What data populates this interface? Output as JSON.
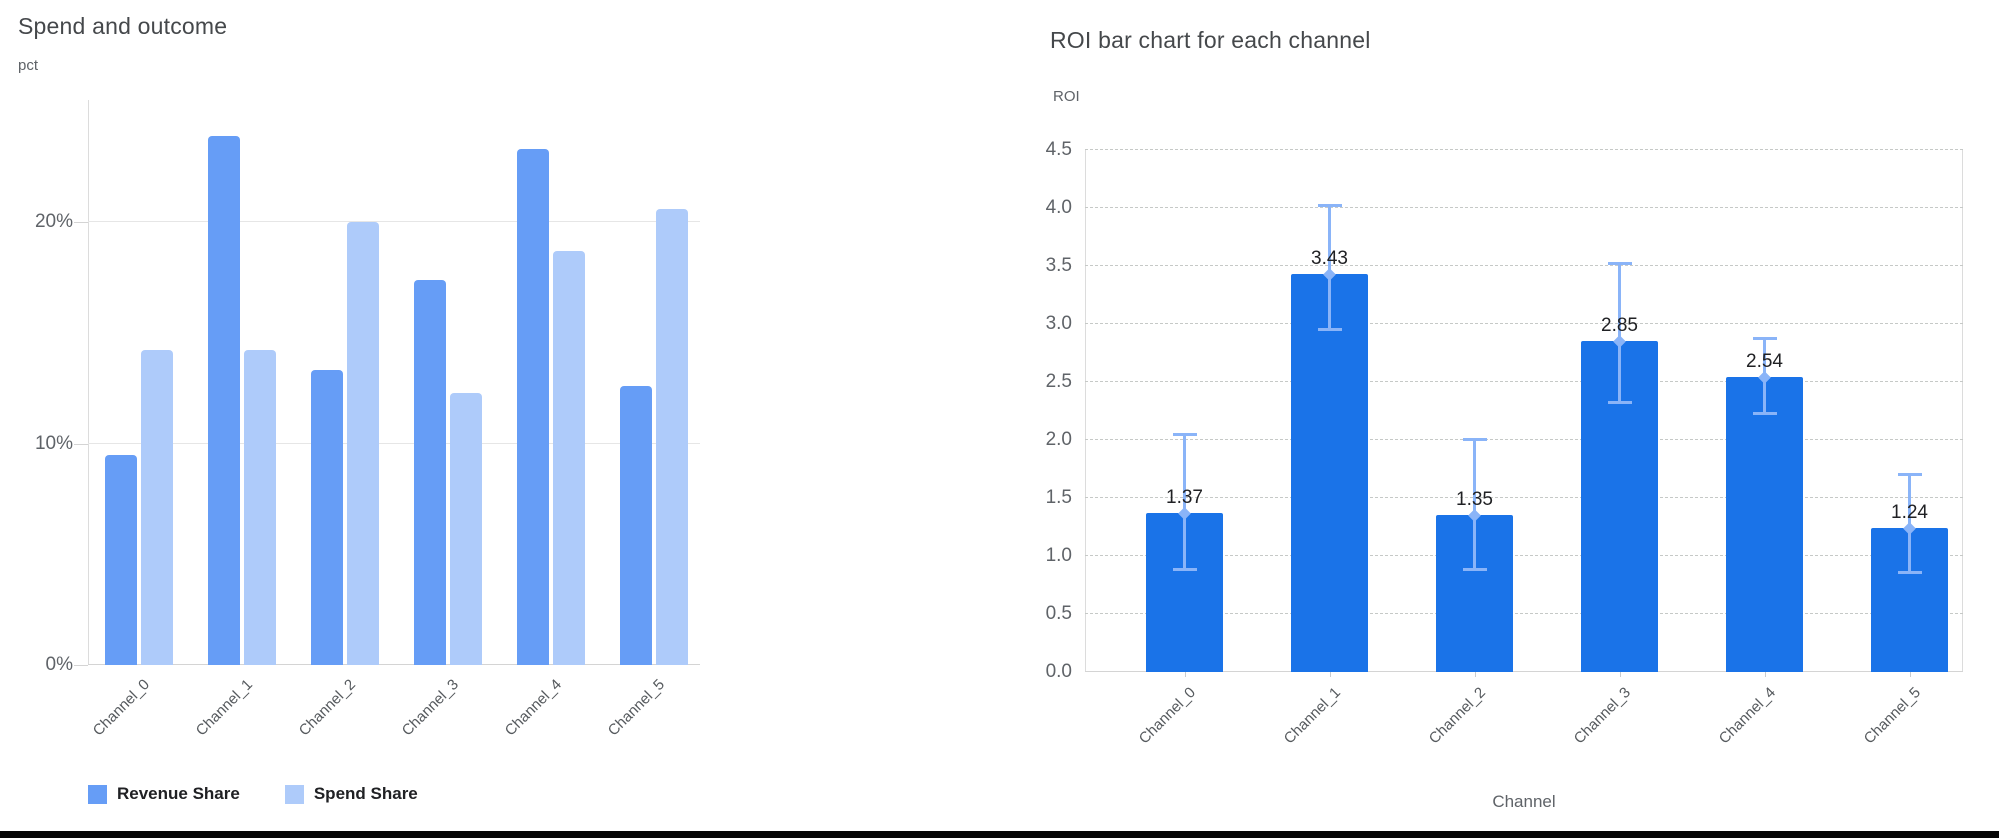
{
  "page": {
    "background": "#ffffff",
    "bottom_bar_color": "#050505"
  },
  "chart_data": [
    {
      "type": "bar",
      "title": "Spend and outcome",
      "ylabel": "pct",
      "xlabel": "",
      "categories": [
        "Channel_0",
        "Channel_1",
        "Channel_2",
        "Channel_3",
        "Channel_4",
        "Channel_5"
      ],
      "series": [
        {
          "name": "Revenue Share",
          "color": "#669df6",
          "values": [
            9.5,
            23.9,
            13.3,
            17.4,
            23.3,
            12.6
          ]
        },
        {
          "name": "Spend Share",
          "color": "#aecbfa",
          "values": [
            14.2,
            14.2,
            20.0,
            12.3,
            18.7,
            20.6
          ]
        }
      ],
      "y_ticks": [
        {
          "value": 0,
          "label": "0%"
        },
        {
          "value": 10,
          "label": "10%"
        },
        {
          "value": 20,
          "label": "20%"
        }
      ],
      "ylim": [
        0,
        25.5
      ],
      "grid": "solid horizontal",
      "legend_position": "bottom"
    },
    {
      "type": "bar",
      "title": "ROI bar chart for each channel",
      "ylabel": "ROI",
      "xlabel": "Channel",
      "categories": [
        "Channel_0",
        "Channel_1",
        "Channel_2",
        "Channel_3",
        "Channel_4",
        "Channel_5"
      ],
      "values": [
        1.37,
        3.43,
        1.35,
        2.85,
        2.54,
        1.24
      ],
      "data_labels": [
        "1.37",
        "3.43",
        "1.35",
        "2.85",
        "2.54",
        "1.24"
      ],
      "error_low": [
        0.88,
        2.95,
        0.88,
        2.32,
        2.22,
        0.85
      ],
      "error_high": [
        2.04,
        4.02,
        2.0,
        3.52,
        2.87,
        1.7
      ],
      "bar_color": "#1a73e8",
      "error_color": "#8ab4f8",
      "y_ticks": [
        {
          "value": 0.0,
          "label": "0.0"
        },
        {
          "value": 0.5,
          "label": "0.5"
        },
        {
          "value": 1.0,
          "label": "1.0"
        },
        {
          "value": 1.5,
          "label": "1.5"
        },
        {
          "value": 2.0,
          "label": "2.0"
        },
        {
          "value": 2.5,
          "label": "2.5"
        },
        {
          "value": 3.0,
          "label": "3.0"
        },
        {
          "value": 3.5,
          "label": "3.5"
        },
        {
          "value": 4.0,
          "label": "4.0"
        },
        {
          "value": 4.5,
          "label": "4.5"
        }
      ],
      "ylim": [
        0,
        4.5
      ],
      "grid": "dashed horizontal",
      "legend_position": "none"
    }
  ]
}
